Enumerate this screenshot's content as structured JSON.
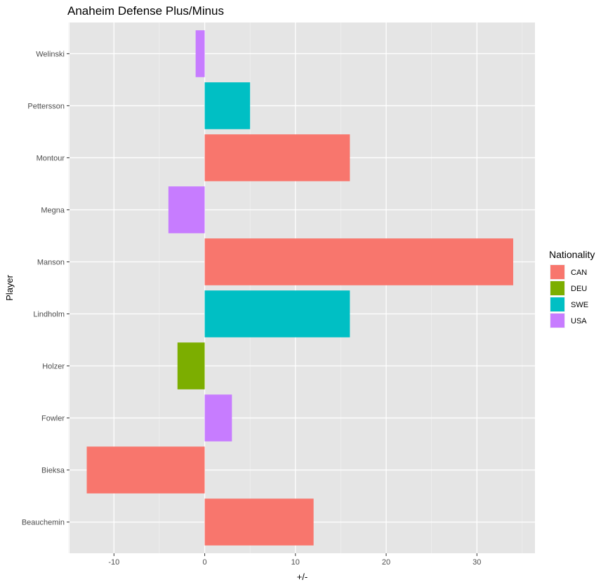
{
  "chart_data": {
    "type": "bar",
    "orientation": "horizontal",
    "title": "Anaheim Defense Plus/Minus",
    "xlabel": "+/-",
    "ylabel": "Player",
    "xlim": [
      -15,
      35
    ],
    "xticks": [
      -10,
      0,
      10,
      20,
      30
    ],
    "categories": [
      "Beauchemin",
      "Bieksa",
      "Fowler",
      "Holzer",
      "Lindholm",
      "Manson",
      "Megna",
      "Montour",
      "Pettersson",
      "Welinski"
    ],
    "values": [
      12,
      -13,
      3,
      -3,
      16,
      34,
      -4,
      16,
      5,
      -1
    ],
    "nationality": [
      "CAN",
      "CAN",
      "USA",
      "DEU",
      "SWE",
      "CAN",
      "USA",
      "CAN",
      "SWE",
      "USA"
    ],
    "grid": true,
    "legend": {
      "title": "Nationality",
      "position": "right",
      "entries": [
        {
          "label": "CAN",
          "color": "#F8766D"
        },
        {
          "label": "DEU",
          "color": "#7CAE00"
        },
        {
          "label": "SWE",
          "color": "#00BFC4"
        },
        {
          "label": "USA",
          "color": "#C77CFF"
        }
      ]
    }
  }
}
